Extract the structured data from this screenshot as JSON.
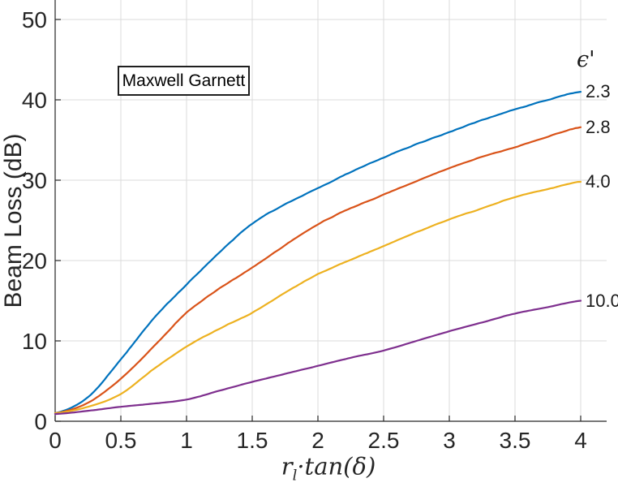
{
  "chart_data": {
    "type": "line",
    "title": "",
    "xlabel": "r_l·tan(δ)",
    "xlabel_parts": {
      "base": "r",
      "sub": "l",
      "rest": "·tan(δ)"
    },
    "ylabel": "Beam Loss (dB)",
    "annotation": "Maxwell Garnett",
    "legend_title": "ϵ'",
    "legend_position": "right-of-curve-ends",
    "grid": true,
    "xlim": [
      0,
      4.2
    ],
    "ylim": [
      0,
      52.4
    ],
    "x_ticks": [
      0,
      0.5,
      1,
      1.5,
      2,
      2.5,
      3,
      3.5,
      4
    ],
    "x_tick_labels": [
      "0",
      "0.5",
      "1",
      "1.5",
      "2",
      "2.5",
      "3",
      "3.5",
      "4"
    ],
    "y_ticks": [
      0,
      10,
      20,
      30,
      40,
      50
    ],
    "y_tick_labels": [
      "0",
      "10",
      "20",
      "30",
      "40",
      "50"
    ],
    "x": [
      0,
      0.25,
      0.5,
      0.75,
      1,
      1.25,
      1.5,
      1.75,
      2,
      2.25,
      2.5,
      2.75,
      3,
      3.25,
      3.5,
      3.75,
      4
    ],
    "series": [
      {
        "name": "2.3",
        "color": "#0072BD",
        "values": [
          1.0,
          3.0,
          7.7,
          12.8,
          17.0,
          21.0,
          24.6,
          27.0,
          29.0,
          31.0,
          32.8,
          34.5,
          36.0,
          37.5,
          38.8,
          40.0,
          41.0
        ]
      },
      {
        "name": "2.8",
        "color": "#D95319",
        "values": [
          1.0,
          2.3,
          5.3,
          9.3,
          13.5,
          16.5,
          19.1,
          21.9,
          24.5,
          26.5,
          28.2,
          29.9,
          31.5,
          32.9,
          34.1,
          35.4,
          36.6
        ]
      },
      {
        "name": "4.0",
        "color": "#EDB120",
        "values": [
          1.0,
          1.8,
          3.4,
          6.5,
          9.3,
          11.5,
          13.5,
          16.0,
          18.3,
          20.1,
          21.8,
          23.5,
          25.1,
          26.5,
          27.9,
          28.9,
          29.8
        ]
      },
      {
        "name": "10.0",
        "color": "#7E2F8E",
        "values": [
          0.9,
          1.3,
          1.8,
          2.2,
          2.7,
          3.8,
          4.9,
          5.9,
          6.9,
          7.9,
          8.8,
          10.0,
          11.2,
          12.3,
          13.4,
          14.2,
          15.0
        ]
      }
    ],
    "colors": {
      "grid": "#DBDBDB",
      "axis": "#262626",
      "tick_text": "#262626"
    }
  }
}
